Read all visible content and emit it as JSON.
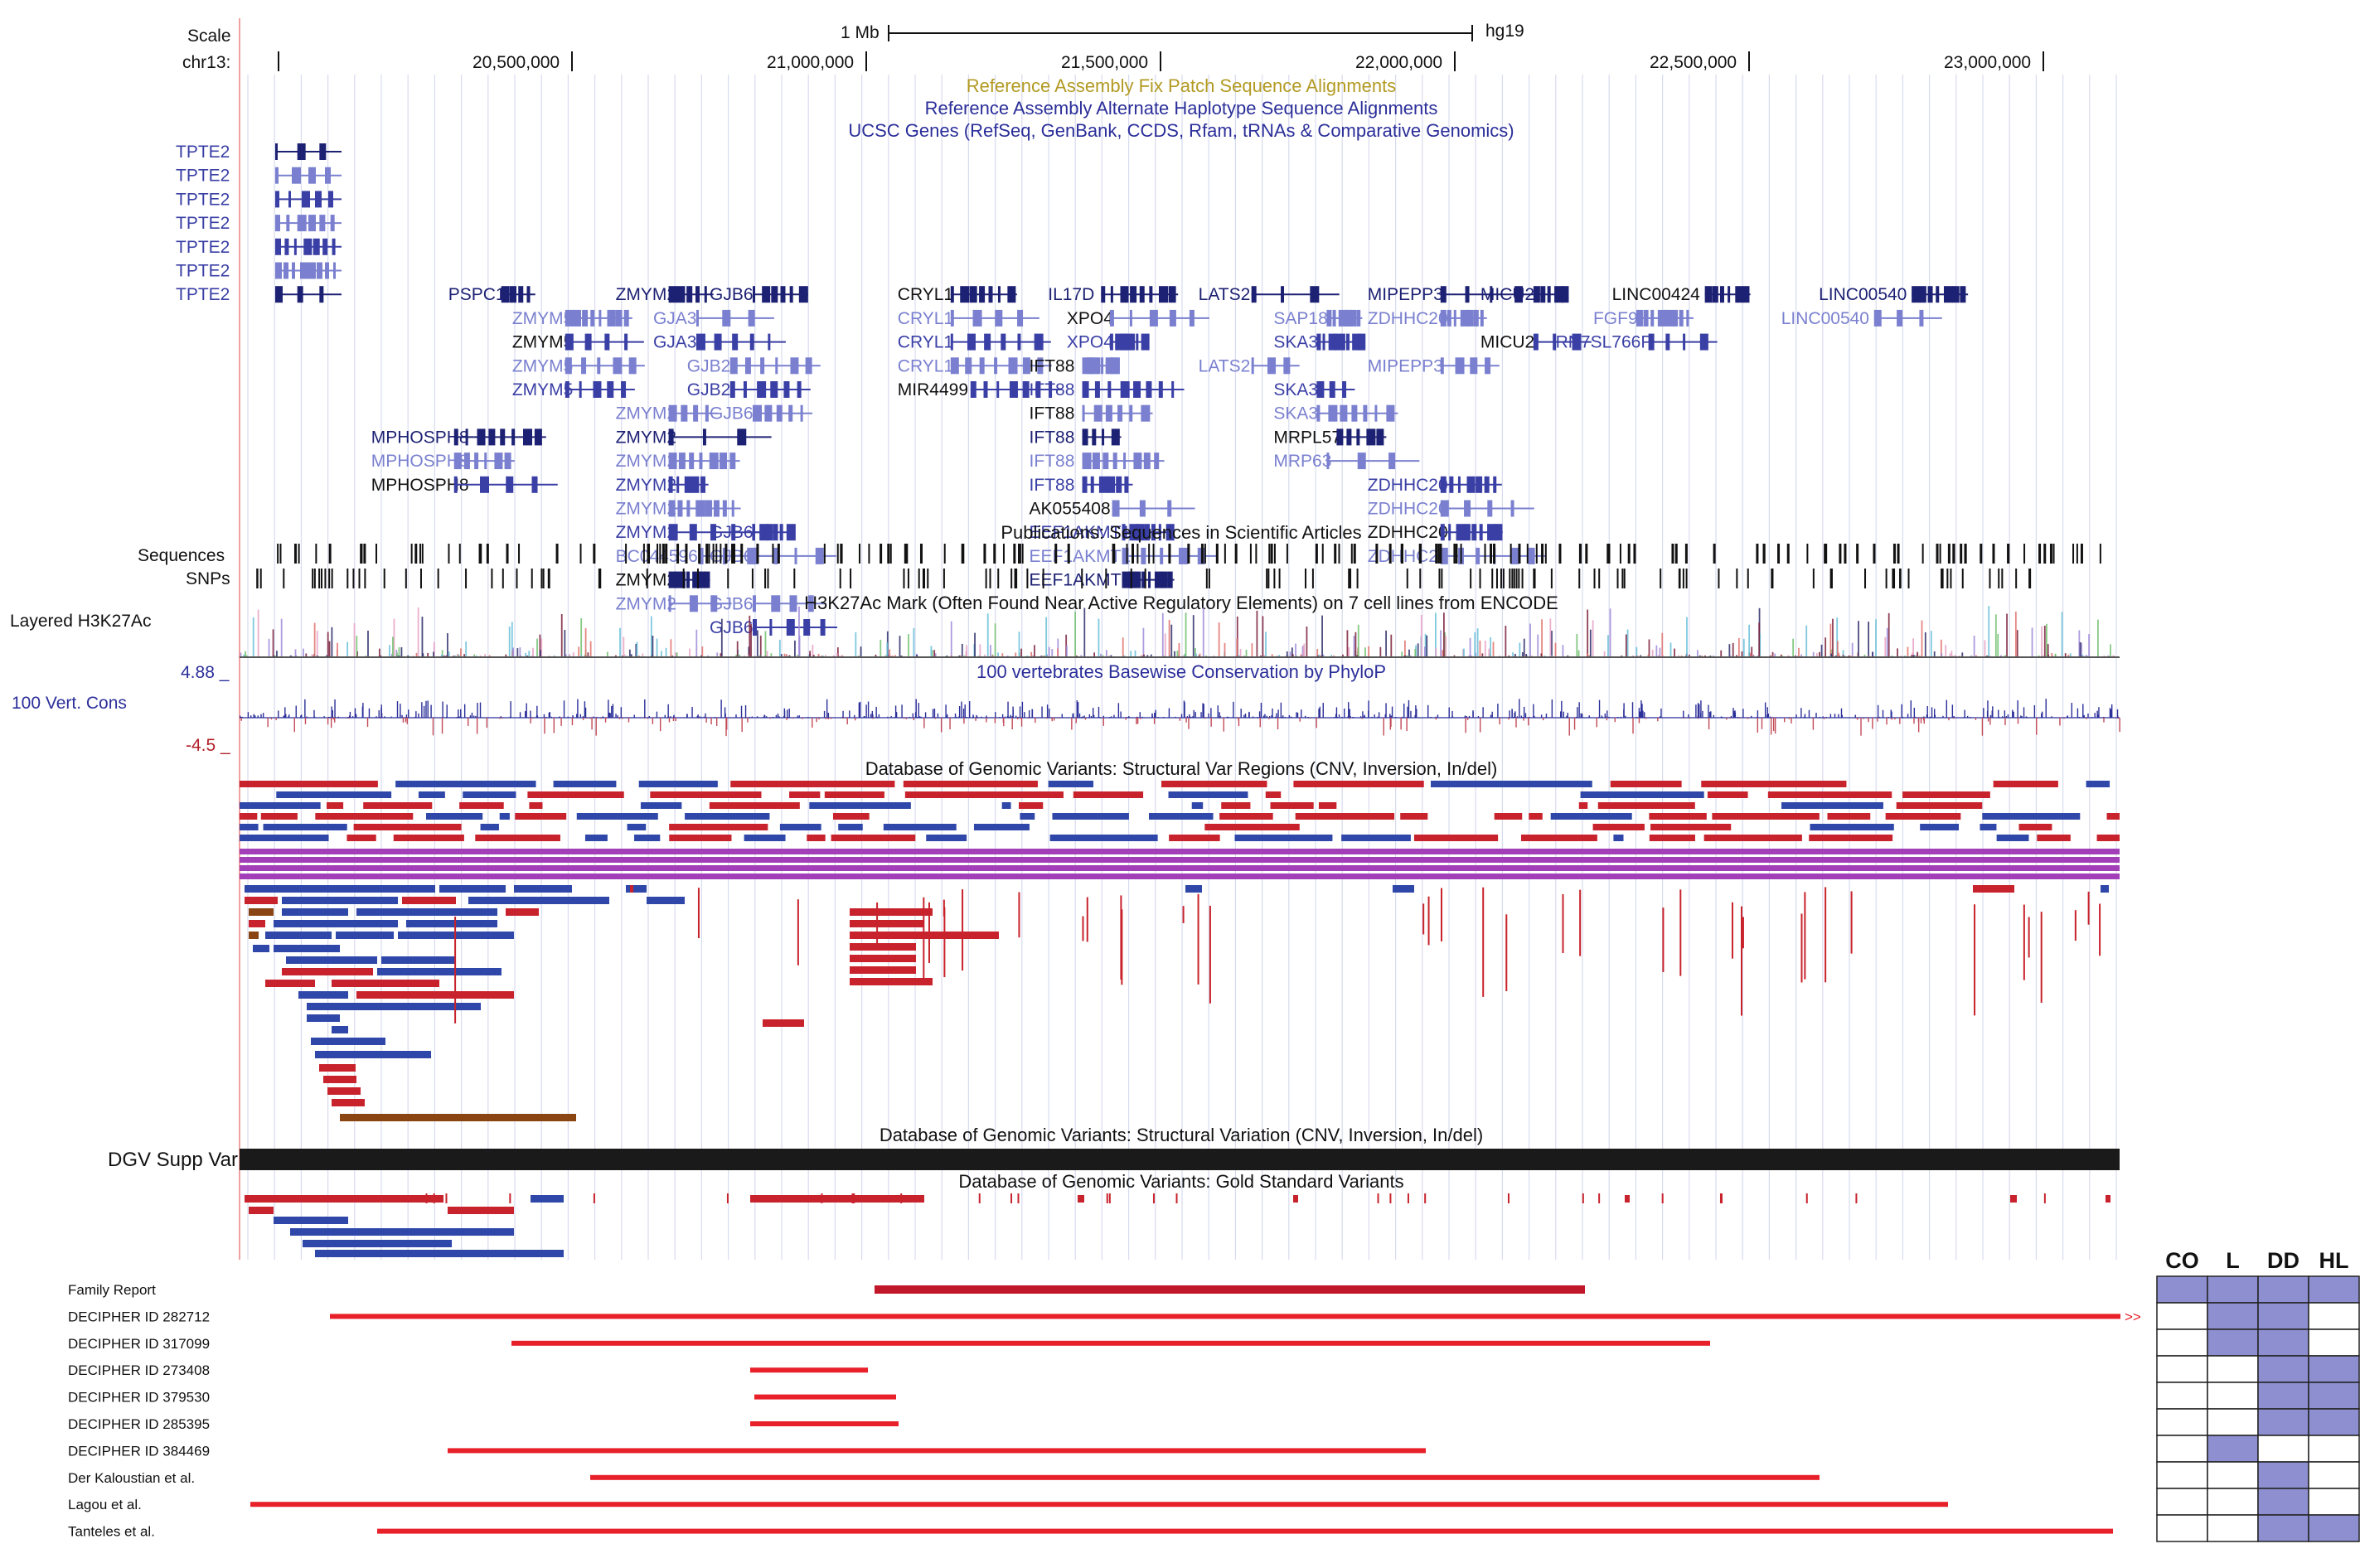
{
  "browser": {
    "scale_label": "Scale",
    "scale_text": "1 Mb",
    "assembly": "hg19",
    "chrom_label": "chr13:",
    "ticks": [
      "20,500,000",
      "21,000,000",
      "21,500,000",
      "22,000,000",
      "22,500,000",
      "23,000,000"
    ],
    "track_titles": {
      "fix_patch": "Reference Assembly Fix Patch Sequence Alignments",
      "alt_haplo": "Reference Assembly Alternate Haplotype Sequence Alignments",
      "ucsc_genes": "UCSC Genes (RefSeq, GenBank, CCDS, Rfam, tRNAs & Comparative Genomics)",
      "publications": "Publications: Sequences in Scientific Articles",
      "h3k27ac": "H3K27Ac Mark (Often Found Near Active Regulatory Elements) on 7 cell lines from ENCODE",
      "phylop": "100 vertebrates Basewise Conservation by PhyloP",
      "dgv_regions": "Database of Genomic Variants: Structural Var Regions (CNV, Inversion, In/del)",
      "dgv_variation": "Database of Genomic Variants: Structural Variation (CNV, Inversion, In/del)",
      "dgv_gold": "Database of Genomic Variants: Gold Standard Variants"
    },
    "side_labels": {
      "sequences": "Sequences",
      "snps": "SNPs",
      "h3k27ac": "Layered H3K27Ac",
      "cons_max": "4.88 _",
      "cons_label": "100 Vert. Cons",
      "cons_min": "-4.5 _",
      "dgv_supp": "DGV Supp Var"
    },
    "genes": [
      {
        "name": "TPTE2",
        "pos": 0.012
      },
      {
        "name": "TPTE2",
        "pos": 0.012
      },
      {
        "name": "TPTE2",
        "pos": 0.012
      },
      {
        "name": "TPTE2",
        "pos": 0.012
      },
      {
        "name": "TPTE2",
        "pos": 0.012
      },
      {
        "name": "TPTE2",
        "pos": 0.012
      },
      {
        "name": "TPTE2",
        "pos": 0.012
      },
      {
        "name": "PSPC1",
        "pos": 0.111
      },
      {
        "name": "ZMYM2",
        "pos": 0.2
      },
      {
        "name": "GJB6",
        "pos": 0.25
      },
      {
        "name": "CRYL1",
        "pos": 0.35
      },
      {
        "name": "IL17D",
        "pos": 0.43
      },
      {
        "name": "LATS2",
        "pos": 0.51
      },
      {
        "name": "MIPEPP3",
        "pos": 0.6
      },
      {
        "name": "MICU2",
        "pos": 0.66
      },
      {
        "name": "LINC00424",
        "pos": 0.73
      },
      {
        "name": "LINC00540",
        "pos": 0.84
      },
      {
        "name": "ZMYM5",
        "pos": 0.145
      },
      {
        "name": "GJA3",
        "pos": 0.22
      },
      {
        "name": "CRYL1",
        "pos": 0.35
      },
      {
        "name": "XPO4",
        "pos": 0.44
      },
      {
        "name": "SAP18",
        "pos": 0.55
      },
      {
        "name": "ZDHHC20",
        "pos": 0.6
      },
      {
        "name": "FGF9",
        "pos": 0.72
      },
      {
        "name": "LINC00540",
        "pos": 0.82
      },
      {
        "name": "ZMYM5",
        "pos": 0.145
      },
      {
        "name": "GJA3",
        "pos": 0.22
      },
      {
        "name": "CRYL1",
        "pos": 0.35
      },
      {
        "name": "XPO4",
        "pos": 0.44
      },
      {
        "name": "SKA3",
        "pos": 0.55
      },
      {
        "name": "MICU2",
        "pos": 0.66
      },
      {
        "name": "RN7SL766P",
        "pos": 0.7
      },
      {
        "name": "ZMYM5",
        "pos": 0.145
      },
      {
        "name": "GJB2",
        "pos": 0.238
      },
      {
        "name": "CRYL1",
        "pos": 0.35
      },
      {
        "name": "IFT88",
        "pos": 0.42
      },
      {
        "name": "LATS2",
        "pos": 0.51
      },
      {
        "name": "MIPEPP3",
        "pos": 0.6
      },
      {
        "name": "ZMYM5",
        "pos": 0.145
      },
      {
        "name": "GJB2",
        "pos": 0.238
      },
      {
        "name": "MIR4499",
        "pos": 0.35
      },
      {
        "name": "IFT88",
        "pos": 0.42
      },
      {
        "name": "SKA3",
        "pos": 0.55
      },
      {
        "name": "ZMYM2",
        "pos": 0.2
      },
      {
        "name": "GJB6",
        "pos": 0.25
      },
      {
        "name": "IFT88",
        "pos": 0.42
      },
      {
        "name": "SKA3",
        "pos": 0.55
      },
      {
        "name": "MPHOSPH8",
        "pos": 0.07
      },
      {
        "name": "ZMYM2",
        "pos": 0.2
      },
      {
        "name": "IFT88",
        "pos": 0.42
      },
      {
        "name": "MRPL57",
        "pos": 0.55
      },
      {
        "name": "MPHOSPH8",
        "pos": 0.07
      },
      {
        "name": "ZMYM2",
        "pos": 0.2
      },
      {
        "name": "IFT88",
        "pos": 0.42
      },
      {
        "name": "MRP63",
        "pos": 0.55
      },
      {
        "name": "MPHOSPH8",
        "pos": 0.07
      },
      {
        "name": "ZMYM2",
        "pos": 0.2
      },
      {
        "name": "IFT88",
        "pos": 0.42
      },
      {
        "name": "ZDHHC20",
        "pos": 0.6
      },
      {
        "name": "ZMYM2",
        "pos": 0.2
      },
      {
        "name": "AK055408",
        "pos": 0.42
      },
      {
        "name": "ZDHHC20",
        "pos": 0.6
      },
      {
        "name": "ZMYM2",
        "pos": 0.2
      },
      {
        "name": "GJB6",
        "pos": 0.25
      },
      {
        "name": "EEF1AKMT1",
        "pos": 0.42
      },
      {
        "name": "ZDHHC20",
        "pos": 0.6
      },
      {
        "name": "BC044596",
        "pos": 0.2
      },
      {
        "name": "GJB6",
        "pos": 0.25
      },
      {
        "name": "EEF1AKMT1",
        "pos": 0.42
      },
      {
        "name": "ZDHHC20",
        "pos": 0.6
      },
      {
        "name": "ZMYM2",
        "pos": 0.2
      },
      {
        "name": "EEF1AKMT1",
        "pos": 0.42
      },
      {
        "name": "ZMYM2",
        "pos": 0.2
      },
      {
        "name": "GJB6",
        "pos": 0.25
      },
      {
        "name": "GJB6",
        "pos": 0.25
      }
    ]
  },
  "cases": {
    "rows": [
      {
        "label": "Family Report",
        "color": "#c0182a"
      },
      {
        "label": "DECIPHER ID 282712",
        "color": "#e8202a"
      },
      {
        "label": "DECIPHER ID 317099",
        "color": "#e8202a"
      },
      {
        "label": "DECIPHER ID 273408",
        "color": "#e8202a"
      },
      {
        "label": "DECIPHER ID 379530",
        "color": "#e8202a"
      },
      {
        "label": "DECIPHER ID 285395",
        "color": "#e8202a"
      },
      {
        "label": "DECIPHER ID 384469",
        "color": "#e8202a"
      },
      {
        "label": "Der Kaloustian et al.",
        "color": "#e8202a"
      },
      {
        "label": "Lagou et al.",
        "color": "#e8202a"
      },
      {
        "label": "Tanteles et al.",
        "color": "#e8202a"
      }
    ],
    "overflow_marker": ">>",
    "table_headers": [
      "CO",
      "L",
      "DD",
      "HL"
    ],
    "table_rows": [
      [
        1,
        1,
        1,
        1
      ],
      [
        0,
        1,
        1,
        0
      ],
      [
        0,
        1,
        1,
        0
      ],
      [
        0,
        0,
        1,
        1
      ],
      [
        0,
        0,
        1,
        1
      ],
      [
        0,
        0,
        1,
        1
      ],
      [
        0,
        1,
        0,
        0
      ],
      [
        0,
        0,
        1,
        0
      ],
      [
        0,
        0,
        1,
        0
      ],
      [
        0,
        0,
        1,
        1
      ]
    ],
    "filled_color": "#8e8fd0"
  }
}
